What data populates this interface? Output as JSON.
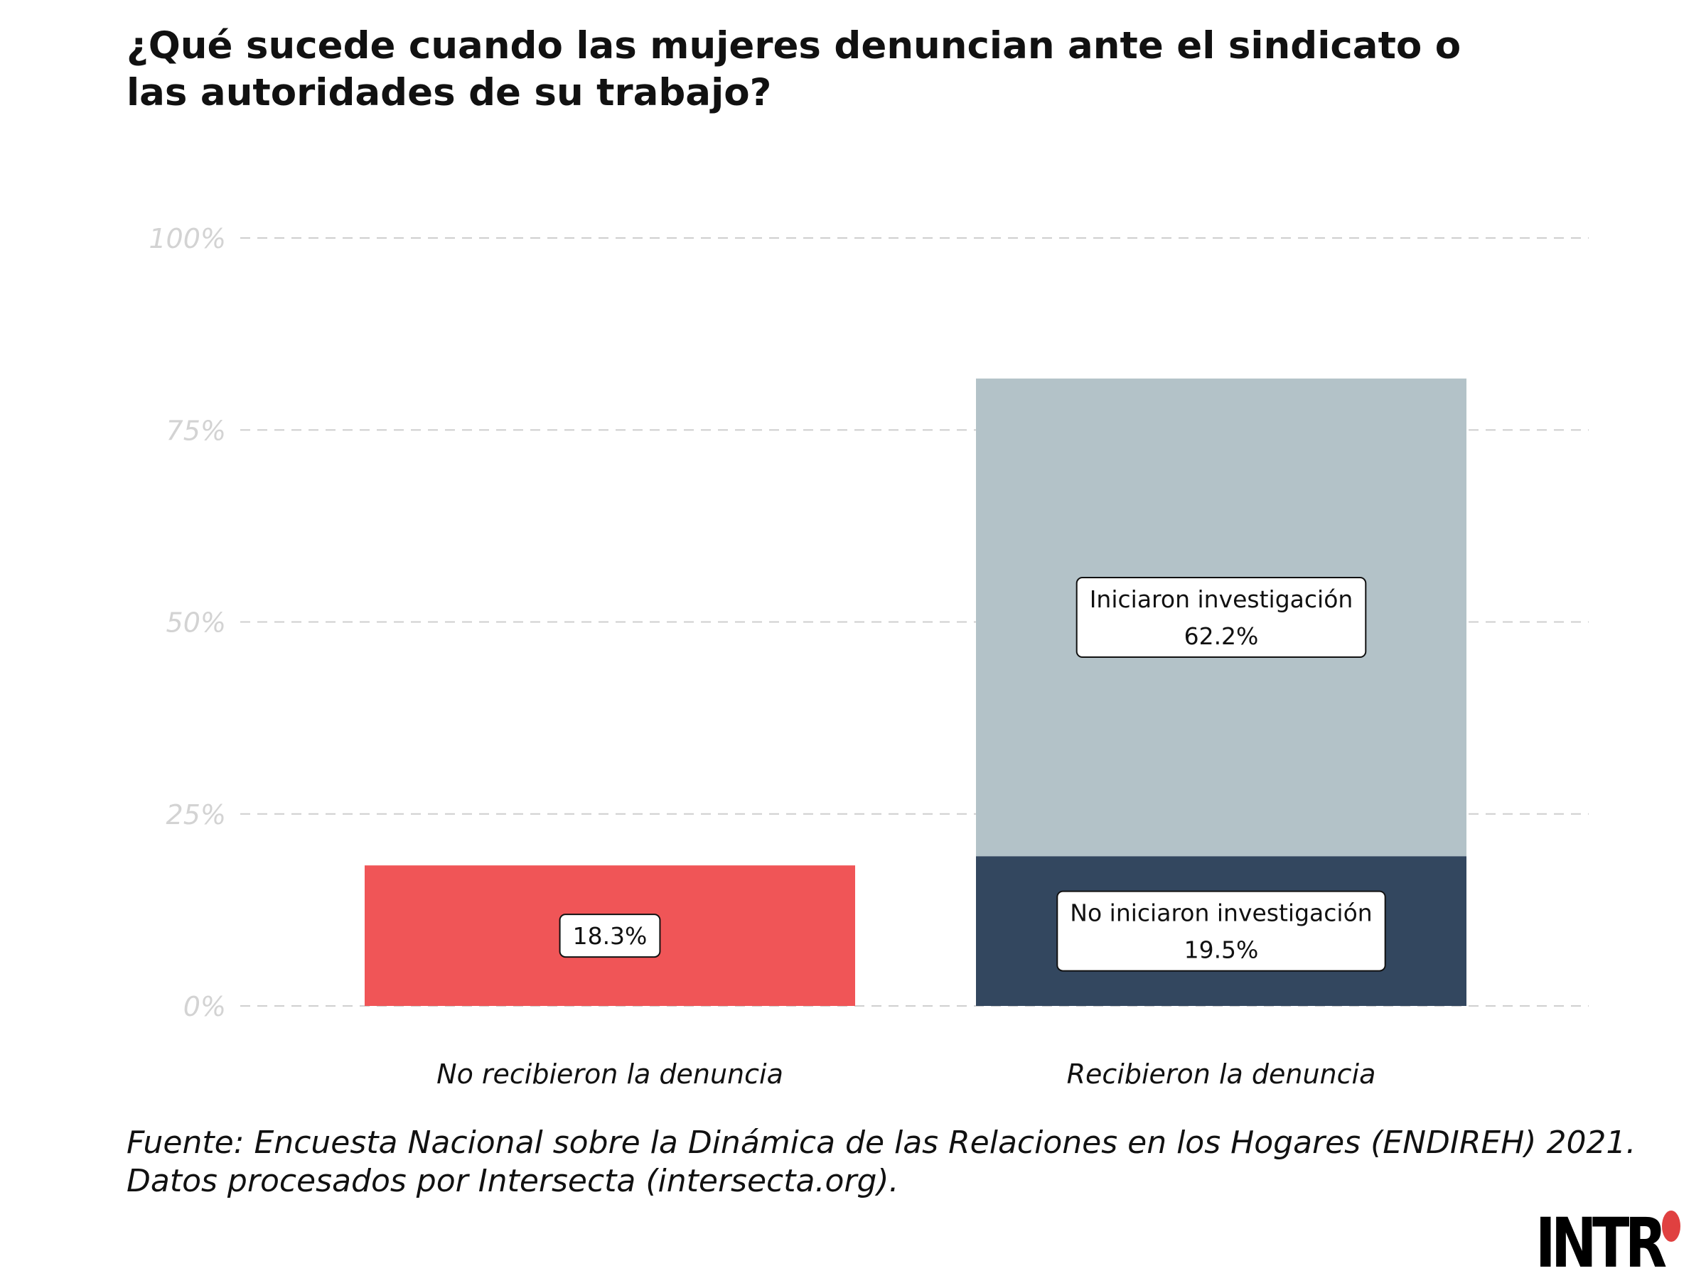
{
  "title_lines": [
    "¿Qué sucede cuando las mujeres denuncian ante el sindicato o",
    "las autoridades de su trabajo?"
  ],
  "source_lines": [
    "Fuente: Encuesta Nacional sobre la Dinámica de las Relaciones en los Hogares (ENDIREH) 2021.",
    "Datos procesados por Intersecta (intersecta.org)."
  ],
  "logo": {
    "text": "INTR"
  },
  "colors": {
    "red": "#f05557",
    "light": "#b3c2c8",
    "dark": "#33475f",
    "grid": "#cfcfcf",
    "tick": "#d3d3d3"
  },
  "chart_data": {
    "type": "bar",
    "stacked": true,
    "ylim": [
      0,
      100
    ],
    "yticks": [
      0,
      25,
      50,
      75,
      100
    ],
    "ytick_labels": [
      "0%",
      "25%",
      "50%",
      "75%",
      "100%"
    ],
    "grid": true,
    "categories": [
      "No recibieron la denuncia",
      "Recibieron la denuncia"
    ],
    "segments": [
      {
        "category": "No recibieron la denuncia",
        "name": "",
        "value": 18.3,
        "label": "18.3%",
        "color": "#f05557"
      },
      {
        "category": "Recibieron la denuncia",
        "name": "No iniciaron investigación",
        "value": 19.5,
        "label": "19.5%",
        "color": "#33475f"
      },
      {
        "category": "Recibieron la denuncia",
        "name": "Iniciaron investigación",
        "value": 62.2,
        "label": "62.2%",
        "color": "#b3c2c8"
      }
    ]
  }
}
